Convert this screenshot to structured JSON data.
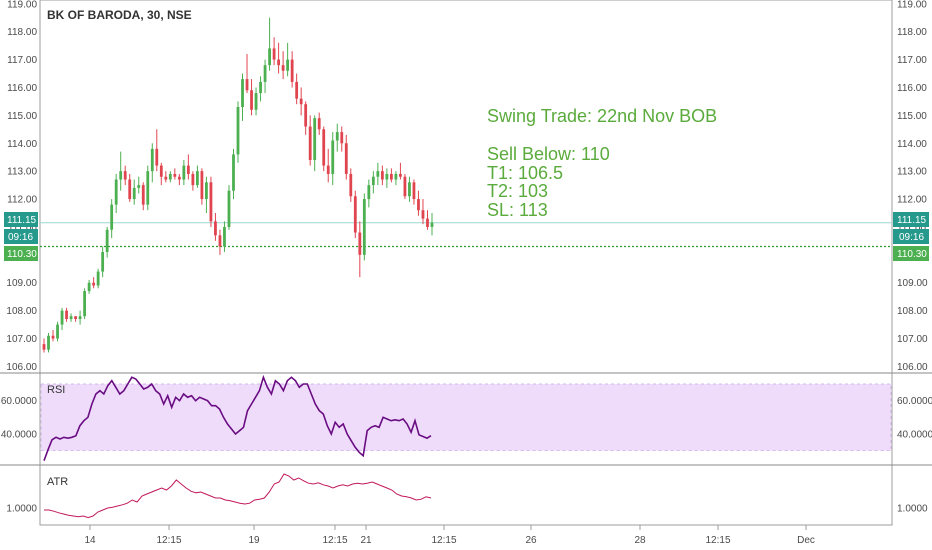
{
  "title": "BK OF BARODA, 30, NSE",
  "colors": {
    "up": "#4caf50",
    "down": "#e0454f",
    "rsi": "#6a0d83",
    "rsi_band": "#eedcfa",
    "atr": "#c2185b",
    "price_line": "#9ad8d0",
    "price_tag": "#26998d",
    "level_line": "#2e9b2e",
    "level_tag": "#4caf50",
    "note": "#5aab3c"
  },
  "annotation": {
    "line1": "Swing Trade: 22nd Nov BOB",
    "line2": "Sell Below: 110",
    "line3": "T1: 106.5",
    "line4": "T2: 103",
    "line5": "SL: 113"
  },
  "tags": {
    "last_price": "111.15",
    "countdown": "09:16",
    "level": "110.30"
  },
  "chart_data": [
    {
      "type": "candlestick",
      "title": "BK OF BARODA, 30, NSE",
      "ylim": [
        105.8,
        119.1
      ],
      "y_ticks": [
        "106.00",
        "107.00",
        "108.00",
        "109.00",
        "110.00",
        "111.00",
        "112.00",
        "113.00",
        "114.00",
        "115.00",
        "116.00",
        "117.00",
        "118.00",
        "119.00"
      ],
      "last_price": 111.15,
      "level": 110.3,
      "candles": [
        [
          106.8,
          107.0,
          106.5,
          106.6
        ],
        [
          106.6,
          107.2,
          106.5,
          107.1
        ],
        [
          107.1,
          107.3,
          106.9,
          107.0
        ],
        [
          107.0,
          107.6,
          106.9,
          107.5
        ],
        [
          107.5,
          108.1,
          107.3,
          108.0
        ],
        [
          108.0,
          108.1,
          107.6,
          107.7
        ],
        [
          107.7,
          107.9,
          107.6,
          107.8
        ],
        [
          107.8,
          107.8,
          107.6,
          107.7
        ],
        [
          107.7,
          108.0,
          107.5,
          107.8
        ],
        [
          107.8,
          108.8,
          107.7,
          108.7
        ],
        [
          108.7,
          109.1,
          108.6,
          109.0
        ],
        [
          109.0,
          109.2,
          108.8,
          108.9
        ],
        [
          108.9,
          109.5,
          108.8,
          109.4
        ],
        [
          109.4,
          110.3,
          109.2,
          110.1
        ],
        [
          110.1,
          111.0,
          109.9,
          110.9
        ],
        [
          110.9,
          112.0,
          110.6,
          111.8
        ],
        [
          111.8,
          112.9,
          111.5,
          112.7
        ],
        [
          112.7,
          113.7,
          112.3,
          113.0
        ],
        [
          113.0,
          113.2,
          112.5,
          112.7
        ],
        [
          112.7,
          112.9,
          111.9,
          112.0
        ],
        [
          112.0,
          112.7,
          111.8,
          112.4
        ],
        [
          112.4,
          112.8,
          112.2,
          112.5
        ],
        [
          112.5,
          112.6,
          111.6,
          111.8
        ],
        [
          111.8,
          113.2,
          111.6,
          113.0
        ],
        [
          113.0,
          114.0,
          112.6,
          113.8
        ],
        [
          113.8,
          114.5,
          113.0,
          113.2
        ],
        [
          113.2,
          113.3,
          112.5,
          112.8
        ],
        [
          112.8,
          113.0,
          112.6,
          112.7
        ],
        [
          112.7,
          113.0,
          112.6,
          112.9
        ],
        [
          112.9,
          113.1,
          112.7,
          112.8
        ],
        [
          112.8,
          112.9,
          112.5,
          112.7
        ],
        [
          112.7,
          113.4,
          112.5,
          113.2
        ],
        [
          113.2,
          113.6,
          112.7,
          112.9
        ],
        [
          112.9,
          113.0,
          112.3,
          112.5
        ],
        [
          112.5,
          113.2,
          112.4,
          113.0
        ],
        [
          113.0,
          113.1,
          111.8,
          112.0
        ],
        [
          112.0,
          112.8,
          111.5,
          112.6
        ],
        [
          112.6,
          112.8,
          111.0,
          111.2
        ],
        [
          111.2,
          111.5,
          110.5,
          110.7
        ],
        [
          110.7,
          110.9,
          110.0,
          110.3
        ],
        [
          110.3,
          111.2,
          110.1,
          111.0
        ],
        [
          111.0,
          112.5,
          110.9,
          112.3
        ],
        [
          112.3,
          113.8,
          112.0,
          113.6
        ],
        [
          113.6,
          115.5,
          113.3,
          115.3
        ],
        [
          115.3,
          116.5,
          114.8,
          116.3
        ],
        [
          116.3,
          117.2,
          115.8,
          115.9
        ],
        [
          115.9,
          116.3,
          115.0,
          115.2
        ],
        [
          115.2,
          116.0,
          115.0,
          115.8
        ],
        [
          115.8,
          116.4,
          115.5,
          116.2
        ],
        [
          116.2,
          117.0,
          115.8,
          116.8
        ],
        [
          116.8,
          118.5,
          116.6,
          117.4
        ],
        [
          117.4,
          117.8,
          116.8,
          117.0
        ],
        [
          117.0,
          117.6,
          116.5,
          116.8
        ],
        [
          116.8,
          117.3,
          116.3,
          116.6
        ],
        [
          116.6,
          117.6,
          116.4,
          117.0
        ],
        [
          117.0,
          117.3,
          116.0,
          116.2
        ],
        [
          116.2,
          116.5,
          115.4,
          115.6
        ],
        [
          115.6,
          116.0,
          115.0,
          115.4
        ],
        [
          115.4,
          115.5,
          114.3,
          114.6
        ],
        [
          114.6,
          115.0,
          113.2,
          113.4
        ],
        [
          113.4,
          115.0,
          113.0,
          114.9
        ],
        [
          114.9,
          115.1,
          114.3,
          114.5
        ],
        [
          114.5,
          114.6,
          113.0,
          113.2
        ],
        [
          113.2,
          113.8,
          112.6,
          112.9
        ],
        [
          112.9,
          114.4,
          112.5,
          114.1
        ],
        [
          114.1,
          114.7,
          113.7,
          114.4
        ],
        [
          114.4,
          114.6,
          113.7,
          114.0
        ],
        [
          114.0,
          114.3,
          112.7,
          112.9
        ],
        [
          112.9,
          113.1,
          111.9,
          112.1
        ],
        [
          112.1,
          112.3,
          110.6,
          110.8
        ],
        [
          110.8,
          111.2,
          109.2,
          110.0
        ],
        [
          110.0,
          112.2,
          109.8,
          112.0
        ],
        [
          112.0,
          112.7,
          111.7,
          112.5
        ],
        [
          112.5,
          113.0,
          112.2,
          112.8
        ],
        [
          112.8,
          113.3,
          112.5,
          113.0
        ],
        [
          113.0,
          113.2,
          112.5,
          112.7
        ],
        [
          112.7,
          113.1,
          112.4,
          112.9
        ],
        [
          112.9,
          113.1,
          112.6,
          112.7
        ],
        [
          112.7,
          113.0,
          112.5,
          112.9
        ],
        [
          112.9,
          113.3,
          112.7,
          112.8
        ],
        [
          112.8,
          112.9,
          112.0,
          112.1
        ],
        [
          112.1,
          112.8,
          111.9,
          112.6
        ],
        [
          112.6,
          112.7,
          111.8,
          112.0
        ],
        [
          112.0,
          112.3,
          111.4,
          111.6
        ],
        [
          111.6,
          112.0,
          111.1,
          111.3
        ],
        [
          111.3,
          111.6,
          110.9,
          111.0
        ],
        [
          111.0,
          111.5,
          110.7,
          111.15
        ]
      ]
    },
    {
      "type": "line",
      "title": "RSI",
      "ylim": [
        22,
        76
      ],
      "y_ticks": [
        "40.0000",
        "60.0000"
      ],
      "band": [
        30,
        70
      ],
      "values": [
        24.0,
        30.5,
        36.5,
        38.0,
        37.0,
        38.0,
        37.5,
        38.0,
        39.0,
        45.0,
        48.0,
        50.0,
        58.0,
        64.0,
        66.0,
        64.0,
        69.0,
        72.0,
        68.0,
        64.0,
        66.0,
        70.0,
        74.0,
        73.0,
        70.0,
        67.0,
        68.0,
        70.0,
        66.0,
        64.0,
        58.0,
        63.0,
        56.0,
        62.0,
        60.0,
        64.0,
        62.0,
        63.0,
        60.0,
        62.0,
        61.0,
        60.0,
        57.0,
        57.0,
        55.0,
        50.0,
        46.0,
        43.0,
        40.0,
        42.0,
        44.0,
        54.0,
        58.0,
        62.0,
        66.0,
        74.0,
        68.0,
        64.0,
        72.0,
        70.0,
        66.0,
        72.0,
        74.0,
        72.0,
        68.0,
        70.0,
        70.0,
        64.0,
        58.0,
        54.0,
        52.0,
        45.0,
        40.0,
        47.0,
        44.0,
        46.0,
        40.0,
        36.0,
        32.0,
        29.0,
        27.0,
        42.0,
        44.0,
        45.0,
        44.0,
        50.0,
        49.0,
        48.0,
        48.5,
        48.0,
        49.0,
        46.0,
        41.0,
        48.0,
        39.5,
        38.5,
        37.5,
        39.0
      ]
    },
    {
      "type": "line",
      "title": "ATR",
      "ylim": [
        0.6,
        2.05
      ],
      "y_ticks": [
        "1.0000"
      ],
      "values": [
        0.95,
        0.95,
        0.92,
        0.88,
        0.85,
        0.82,
        0.8,
        0.78,
        0.8,
        0.76,
        0.8,
        0.9,
        0.95,
        1.0,
        1.02,
        1.05,
        1.08,
        1.12,
        1.2,
        1.15,
        1.3,
        1.35,
        1.4,
        1.45,
        1.5,
        1.45,
        1.55,
        1.7,
        1.6,
        1.5,
        1.42,
        1.38,
        1.4,
        1.35,
        1.3,
        1.25,
        1.25,
        1.2,
        1.18,
        1.15,
        1.12,
        1.1,
        1.12,
        1.2,
        1.22,
        1.25,
        1.4,
        1.6,
        1.65,
        1.85,
        1.8,
        1.7,
        1.75,
        1.68,
        1.62,
        1.6,
        1.63,
        1.58,
        1.55,
        1.5,
        1.55,
        1.58,
        1.55,
        1.6,
        1.62,
        1.6,
        1.62,
        1.65,
        1.6,
        1.55,
        1.5,
        1.45,
        1.35,
        1.3,
        1.28,
        1.25,
        1.2,
        1.22,
        1.28,
        1.25
      ]
    }
  ],
  "x_axis": {
    "labels": [
      "14",
      "12:15",
      "19",
      "12:15",
      "21",
      "12:15",
      "26",
      "28",
      "12:15",
      "Dec"
    ]
  }
}
